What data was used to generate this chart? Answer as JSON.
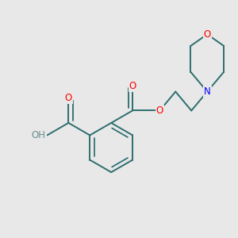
{
  "background_color": "#e8e8e8",
  "atom_colors": {
    "O": "#ff0000",
    "N": "#0000ff",
    "C": "#2d6e6e",
    "H": "#6b8e8e"
  },
  "bond_color": "#2d6e6e",
  "bond_width": 1.4,
  "figsize": [
    3.0,
    3.0
  ],
  "dpi": 100
}
